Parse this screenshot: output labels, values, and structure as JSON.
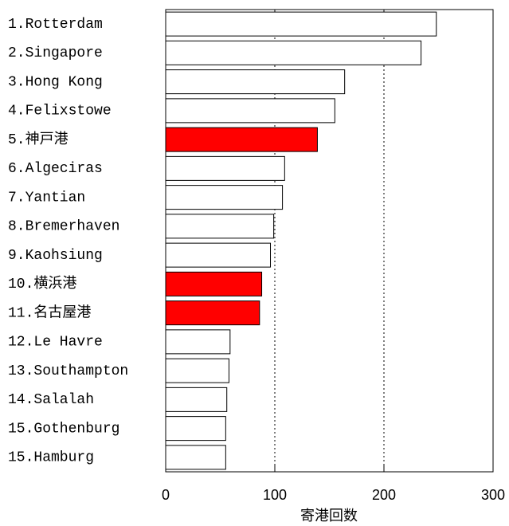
{
  "chart_data": {
    "type": "barh",
    "categories": [
      "1.Rotterdam",
      "2.Singapore",
      "3.Hong Kong",
      "4.Felixstowe",
      "5.神戸港",
      "6.Algeciras",
      "7.Yantian",
      "8.Bremerhaven",
      "9.Kaohsiung",
      "10.横浜港",
      "11.名古屋港",
      "12.Le Havre",
      "13.Southampton",
      "14.Salalah",
      "15.Gothenburg",
      "15.Hamburg"
    ],
    "values": [
      248,
      234,
      164,
      155,
      139,
      109,
      107,
      99,
      96,
      88,
      86,
      59,
      58,
      56,
      55,
      55
    ],
    "colors": [
      "#ffffff",
      "#ffffff",
      "#ffffff",
      "#ffffff",
      "#ff0000",
      "#ffffff",
      "#ffffff",
      "#ffffff",
      "#ffffff",
      "#ff0000",
      "#ff0000",
      "#ffffff",
      "#ffffff",
      "#ffffff",
      "#ffffff",
      "#ffffff"
    ],
    "xlabel": "寄港回数",
    "xlim": [
      0,
      300
    ],
    "xticks": [
      0,
      100,
      200,
      300
    ],
    "grid": true
  }
}
